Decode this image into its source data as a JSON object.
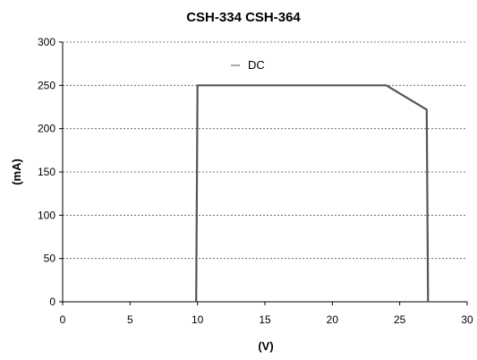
{
  "chart_data": {
    "type": "line",
    "title": "CSH-334 CSH-364",
    "xlabel": "(V)",
    "ylabel": "(mA)",
    "xlim": [
      0,
      30
    ],
    "ylim": [
      0,
      300
    ],
    "x_ticks": [
      0,
      5,
      10,
      15,
      20,
      25,
      30
    ],
    "y_ticks": [
      0,
      50,
      100,
      150,
      200,
      250,
      300
    ],
    "grid": "horizontal-dashed",
    "legend_position": "top-center",
    "series": [
      {
        "name": "DC",
        "color": "#555555",
        "points": [
          {
            "x": 9.9,
            "y": 0
          },
          {
            "x": 10,
            "y": 250
          },
          {
            "x": 24,
            "y": 250
          },
          {
            "x": 27,
            "y": 222
          },
          {
            "x": 27.1,
            "y": 0
          }
        ]
      }
    ]
  }
}
